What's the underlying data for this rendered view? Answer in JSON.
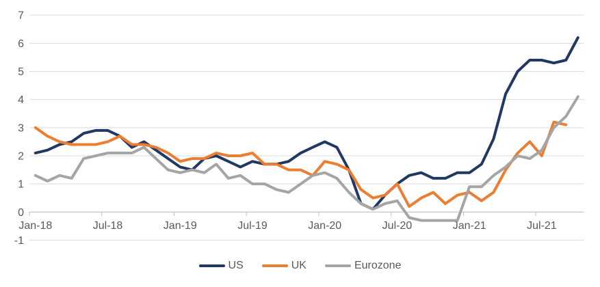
{
  "style": {
    "background": "#FFFFFF",
    "gridline_color": "#D9D9D9",
    "axis_color": "#BFBFBF",
    "label_color": "#595959"
  },
  "chart_data": {
    "type": "line",
    "grid": true,
    "legend_position": "bottom",
    "ylim": [
      -1,
      7
    ],
    "y_ticks": [
      -1,
      0,
      1,
      2,
      3,
      4,
      5,
      6,
      7
    ],
    "x_tick_interval": 6,
    "x_tick_labels": [
      "Jan-18",
      "Jul-18",
      "Jan-19",
      "Jul-19",
      "Jan-20",
      "Jul-20",
      "Jan-21",
      "Jul-21"
    ],
    "x": [
      "Jan-18",
      "Feb-18",
      "Mar-18",
      "Apr-18",
      "May-18",
      "Jun-18",
      "Jul-18",
      "Aug-18",
      "Sep-18",
      "Oct-18",
      "Nov-18",
      "Dec-18",
      "Jan-19",
      "Feb-19",
      "Mar-19",
      "Apr-19",
      "May-19",
      "Jun-19",
      "Jul-19",
      "Aug-19",
      "Sep-19",
      "Oct-19",
      "Nov-19",
      "Dec-19",
      "Jan-20",
      "Feb-20",
      "Mar-20",
      "Apr-20",
      "May-20",
      "Jun-20",
      "Jul-20",
      "Aug-20",
      "Sep-20",
      "Oct-20",
      "Nov-20",
      "Dec-20",
      "Jan-21",
      "Feb-21",
      "Mar-21",
      "Apr-21",
      "May-21",
      "Jun-21",
      "Jul-21",
      "Aug-21",
      "Sep-21",
      "Oct-21"
    ],
    "series": [
      {
        "name": "US",
        "color": "#1F3864",
        "values": [
          2.1,
          2.2,
          2.4,
          2.5,
          2.8,
          2.9,
          2.9,
          2.7,
          2.3,
          2.5,
          2.2,
          1.9,
          1.6,
          1.5,
          1.9,
          2.0,
          1.8,
          1.6,
          1.8,
          1.7,
          1.7,
          1.8,
          2.1,
          2.3,
          2.5,
          2.3,
          1.5,
          0.3,
          0.1,
          0.6,
          1.0,
          1.3,
          1.4,
          1.2,
          1.2,
          1.4,
          1.4,
          1.7,
          2.6,
          4.2,
          5.0,
          5.4,
          5.4,
          5.3,
          5.4,
          6.2
        ]
      },
      {
        "name": "UK",
        "color": "#ED7D31",
        "values": [
          3.0,
          2.7,
          2.5,
          2.4,
          2.4,
          2.4,
          2.5,
          2.7,
          2.4,
          2.4,
          2.3,
          2.1,
          1.8,
          1.9,
          1.9,
          2.1,
          2.0,
          2.0,
          2.1,
          1.7,
          1.7,
          1.5,
          1.5,
          1.3,
          1.8,
          1.7,
          1.5,
          0.8,
          0.5,
          0.6,
          1.0,
          0.2,
          0.5,
          0.7,
          0.3,
          0.6,
          0.7,
          0.4,
          0.7,
          1.5,
          2.1,
          2.5,
          2.0,
          3.2,
          3.1,
          null
        ]
      },
      {
        "name": "Eurozone",
        "color": "#A5A5A5",
        "values": [
          1.3,
          1.1,
          1.3,
          1.2,
          1.9,
          2.0,
          2.1,
          2.1,
          2.1,
          2.3,
          1.9,
          1.5,
          1.4,
          1.5,
          1.4,
          1.7,
          1.2,
          1.3,
          1.0,
          1.0,
          0.8,
          0.7,
          1.0,
          1.3,
          1.4,
          1.2,
          0.7,
          0.3,
          0.1,
          0.3,
          0.4,
          -0.2,
          -0.3,
          -0.3,
          -0.3,
          -0.3,
          0.9,
          0.9,
          1.3,
          1.6,
          2.0,
          1.9,
          2.2,
          3.0,
          3.4,
          4.1
        ]
      }
    ]
  }
}
